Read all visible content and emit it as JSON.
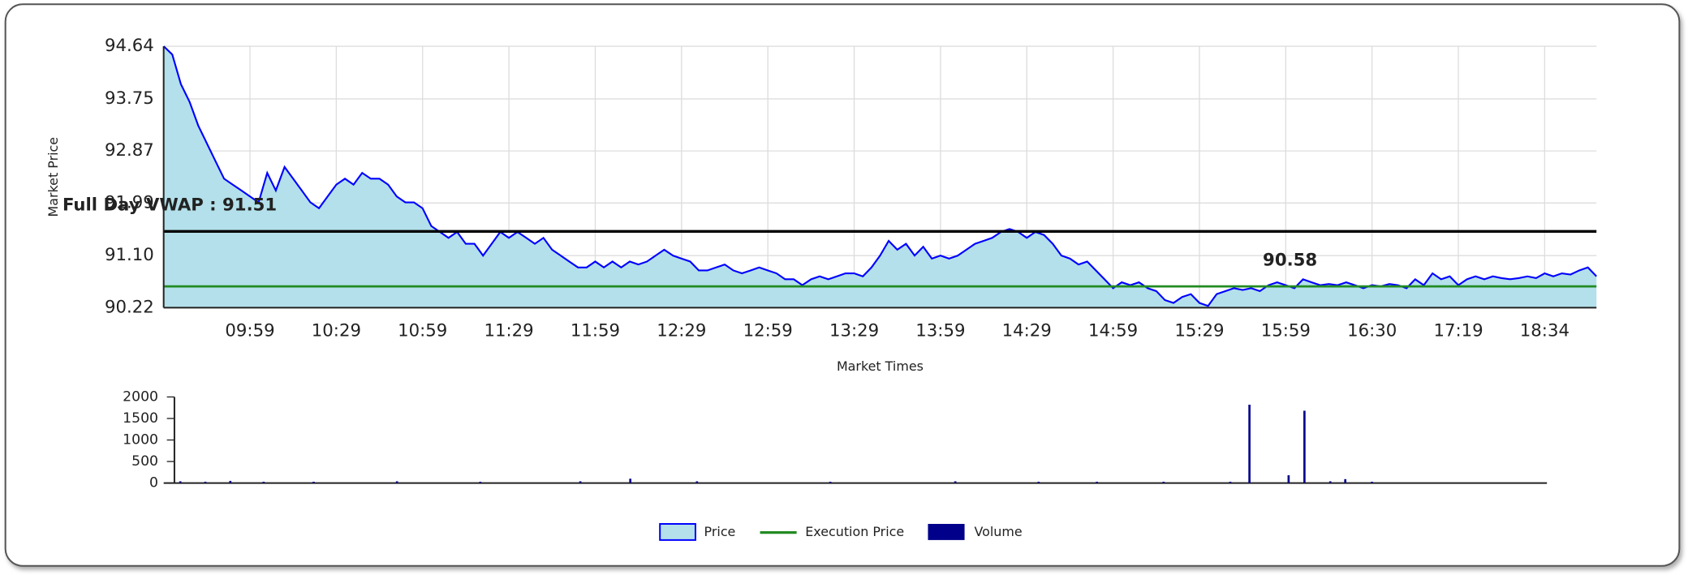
{
  "chart_data": [
    {
      "type": "area",
      "x_label": "Market Times",
      "y_label": "Market Price",
      "xlim": [
        0,
        166
      ],
      "xticks": [
        {
          "value": 10,
          "label": "09:59"
        },
        {
          "value": 20,
          "label": "10:29"
        },
        {
          "value": 30,
          "label": "10:59"
        },
        {
          "value": 40,
          "label": "11:29"
        },
        {
          "value": 50,
          "label": "11:59"
        },
        {
          "value": 60,
          "label": "12:29"
        },
        {
          "value": 70,
          "label": "12:59"
        },
        {
          "value": 80,
          "label": "13:29"
        },
        {
          "value": 90,
          "label": "13:59"
        },
        {
          "value": 100,
          "label": "14:29"
        },
        {
          "value": 110,
          "label": "14:59"
        },
        {
          "value": 120,
          "label": "15:29"
        },
        {
          "value": 130,
          "label": "15:59"
        },
        {
          "value": 140,
          "label": "16:30"
        },
        {
          "value": 150,
          "label": "17:19"
        },
        {
          "value": 160,
          "label": "18:34"
        }
      ],
      "ylim": [
        90.22,
        94.64
      ],
      "yticks": [
        90.22,
        {
          "value": 91.1,
          "label": "91.10"
        },
        91.99,
        92.87,
        93.75,
        94.64
      ],
      "grid": true,
      "series": [
        {
          "name": "Price",
          "color": "#0000ff",
          "fill": "#b3e0ea",
          "values": [
            94.64,
            94.5,
            94.0,
            93.7,
            93.3,
            93.0,
            92.7,
            92.4,
            92.3,
            92.2,
            92.1,
            92.0,
            92.5,
            92.2,
            92.6,
            92.4,
            92.2,
            92.0,
            91.9,
            92.1,
            92.3,
            92.4,
            92.3,
            92.5,
            92.4,
            92.4,
            92.3,
            92.1,
            92.0,
            92.0,
            91.9,
            91.6,
            91.5,
            91.4,
            91.5,
            91.3,
            91.3,
            91.1,
            91.3,
            91.5,
            91.4,
            91.5,
            91.4,
            91.3,
            91.4,
            91.2,
            91.1,
            91.0,
            90.9,
            90.9,
            91.0,
            90.9,
            91.0,
            90.9,
            91.0,
            90.95,
            91.0,
            91.1,
            91.2,
            91.1,
            91.05,
            91.0,
            90.85,
            90.85,
            90.9,
            90.95,
            90.85,
            90.8,
            90.85,
            90.9,
            90.85,
            90.8,
            90.7,
            90.7,
            90.6,
            90.7,
            90.75,
            90.7,
            90.75,
            90.8,
            90.8,
            90.75,
            90.9,
            91.1,
            91.35,
            91.2,
            91.3,
            91.1,
            91.25,
            91.05,
            91.1,
            91.05,
            91.1,
            91.2,
            91.3,
            91.35,
            91.4,
            91.5,
            91.55,
            91.5,
            91.4,
            91.5,
            91.45,
            91.3,
            91.1,
            91.05,
            90.95,
            91.0,
            90.85,
            90.7,
            90.55,
            90.65,
            90.6,
            90.65,
            90.55,
            90.5,
            90.35,
            90.3,
            90.4,
            90.45,
            90.3,
            90.25,
            90.45,
            90.5,
            90.55,
            90.52,
            90.55,
            90.5,
            90.6,
            90.65,
            90.6,
            90.55,
            90.7,
            90.65,
            90.6,
            90.62,
            90.6,
            90.65,
            90.6,
            90.55,
            90.6,
            90.58,
            90.62,
            90.6,
            90.55,
            90.7,
            90.6,
            90.8,
            90.7,
            90.75,
            90.6,
            90.7,
            90.75,
            90.7,
            90.75,
            90.72,
            90.7,
            90.72,
            90.75,
            90.72,
            90.8,
            90.75,
            90.8,
            90.78,
            90.85,
            90.9,
            90.75
          ]
        }
      ],
      "execution": {
        "name": "Execution Price",
        "value": 90.58,
        "color": "#228b22"
      },
      "vwap": {
        "label": "Full Day VWAP : 91.51",
        "value": 91.51,
        "color": "#000000"
      }
    },
    {
      "type": "bar",
      "xlim": [
        0,
        166
      ],
      "ylim": [
        0,
        2000
      ],
      "yticks": [
        0,
        500,
        1000,
        1500,
        2000
      ],
      "series": [
        {
          "name": "Volume",
          "color": "#00008b",
          "x": [
            2,
            5,
            8,
            12,
            18,
            28,
            38,
            50,
            56,
            64,
            80,
            95,
            105,
            112,
            120,
            128,
            130.3,
            135,
            136.9,
            140,
            141.8,
            145
          ],
          "values": [
            40,
            30,
            50,
            30,
            30,
            40,
            30,
            40,
            100,
            40,
            30,
            40,
            30,
            30,
            30,
            30,
            1820,
            180,
            1680,
            40,
            90,
            30
          ]
        }
      ]
    }
  ]
}
